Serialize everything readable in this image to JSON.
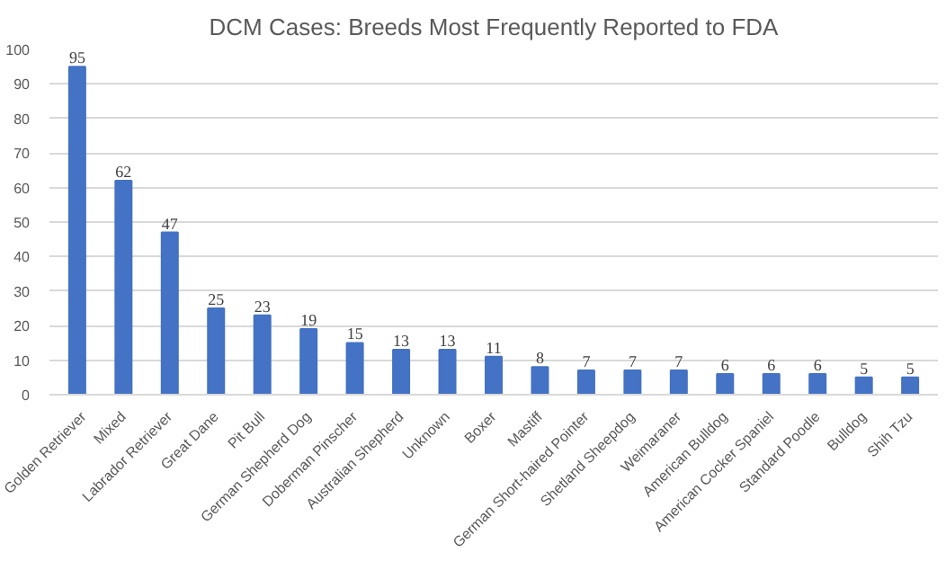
{
  "chart_data": {
    "type": "bar",
    "title": "DCM Cases: Breeds Most Frequently Reported to FDA",
    "categories": [
      "Golden Retriever",
      "Mixed",
      "Labrador Retriever",
      "Great Dane",
      "Pit Bull",
      "German Shepherd Dog",
      "Doberman Pinscher",
      "Australian Shepherd",
      "Unknown",
      "Boxer",
      "Mastiff",
      "German Short-haired Pointer",
      "Shetland Sheepdog",
      "Weimaraner",
      "American Bulldog",
      "American Cocker Spaniel",
      "Standard Poodle",
      "Bulldog",
      "Shih Tzu"
    ],
    "values": [
      95,
      62,
      47,
      25,
      23,
      19,
      15,
      13,
      13,
      11,
      8,
      7,
      7,
      7,
      6,
      6,
      6,
      5,
      5
    ],
    "color": "#4472c4",
    "ylim": [
      0,
      100
    ],
    "yticks": [
      0,
      10,
      20,
      30,
      40,
      50,
      60,
      70,
      80,
      90,
      100
    ],
    "grid": "y",
    "data_labels": true
  }
}
